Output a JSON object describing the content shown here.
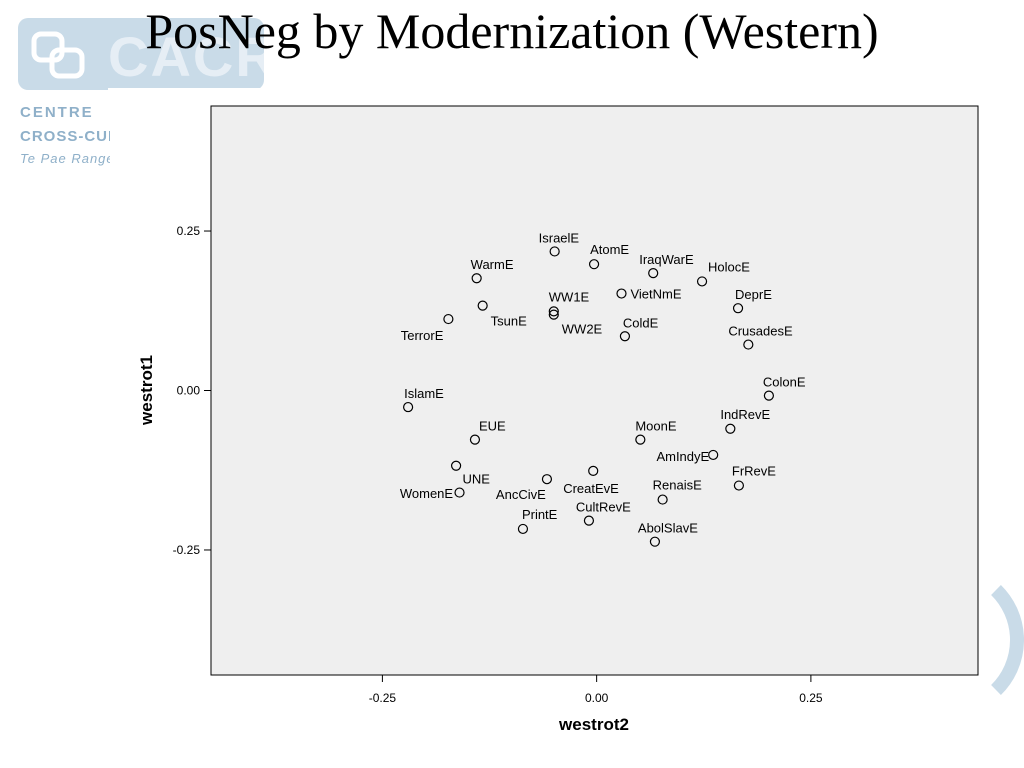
{
  "slide": {
    "title": "PosNeg by Modernization (Western)"
  },
  "logo": {
    "letters": "CACR",
    "line1": "CENTRE",
    "line2": "CROSS-CUL",
    "line3": "Te Pae Range"
  },
  "colors": {
    "plot_bg": "#efefef",
    "point": "#000000",
    "logo": "#c9dbe8"
  },
  "chart_data": {
    "type": "scatter",
    "title": "PosNeg by Modernization (Western)",
    "xlabel": "westrot2",
    "ylabel": "westrot1",
    "xlim": [
      -0.45,
      0.445
    ],
    "ylim": [
      -0.446,
      0.446
    ],
    "xticks": [
      -0.25,
      0.0,
      0.25
    ],
    "xticklabels": [
      "-0.25",
      "0.00",
      "0.25"
    ],
    "yticks": [
      -0.25,
      0.0,
      0.25
    ],
    "yticklabels": [
      "-0.25",
      "0.00",
      "0.25"
    ],
    "grid": false,
    "points": [
      {
        "label": "IsraelE",
        "x": -0.049,
        "y": 0.218
      },
      {
        "label": "AtomE",
        "x": -0.003,
        "y": 0.198
      },
      {
        "label": "IraqWarE",
        "x": 0.066,
        "y": 0.184
      },
      {
        "label": "HolocE",
        "x": 0.123,
        "y": 0.171
      },
      {
        "label": "WarmE",
        "x": -0.14,
        "y": 0.176
      },
      {
        "label": "WW1E",
        "x": -0.05,
        "y": 0.124
      },
      {
        "label": "VietNmE",
        "x": 0.029,
        "y": 0.152
      },
      {
        "label": "DeprE",
        "x": 0.165,
        "y": 0.129
      },
      {
        "label": "TsunE",
        "x": -0.133,
        "y": 0.133
      },
      {
        "label": "TerrorE",
        "x": -0.173,
        "y": 0.112
      },
      {
        "label": "WW2E",
        "x": -0.05,
        "y": 0.119
      },
      {
        "label": "ColdE",
        "x": 0.033,
        "y": 0.085
      },
      {
        "label": "CrusadesE",
        "x": 0.177,
        "y": 0.072
      },
      {
        "label": "ColonE",
        "x": 0.201,
        "y": -0.008
      },
      {
        "label": "IslamE",
        "x": -0.22,
        "y": -0.026
      },
      {
        "label": "IndRevE",
        "x": 0.156,
        "y": -0.06
      },
      {
        "label": "EUE",
        "x": -0.142,
        "y": -0.077
      },
      {
        "label": "MoonE",
        "x": 0.051,
        "y": -0.077
      },
      {
        "label": "AmIndyE",
        "x": 0.136,
        "y": -0.101
      },
      {
        "label": "WomenE",
        "x": -0.164,
        "y": -0.118
      },
      {
        "label": "CreatEvE",
        "x": -0.004,
        "y": -0.126
      },
      {
        "label": "UNE",
        "x": -0.16,
        "y": -0.16
      },
      {
        "label": "AncCivE",
        "x": -0.058,
        "y": -0.139
      },
      {
        "label": "FrRevE",
        "x": 0.166,
        "y": -0.149
      },
      {
        "label": "RenaisE",
        "x": 0.077,
        "y": -0.171
      },
      {
        "label": "PrintE",
        "x": -0.086,
        "y": -0.217
      },
      {
        "label": "CultRevE",
        "x": -0.009,
        "y": -0.204
      },
      {
        "label": "AbolSlavE",
        "x": 0.068,
        "y": -0.237
      }
    ]
  }
}
